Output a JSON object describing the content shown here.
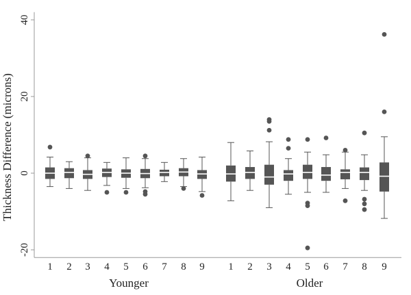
{
  "chart_data": {
    "type": "box",
    "ylabel": "Thickness Difference (microns)",
    "xlabel": "",
    "ylim": [
      -22,
      42
    ],
    "y_ticks": [
      -20,
      0,
      20,
      40
    ],
    "grid": false,
    "colors": {
      "box": "#555555",
      "median": "#ffffff",
      "axis": "#999999",
      "text": "#222222"
    },
    "groups": [
      {
        "name": "Younger",
        "boxes": [
          {
            "label": "1",
            "q1": -1.5,
            "median": 0.0,
            "q3": 1.5,
            "whisker_low": -3.5,
            "whisker_high": 4.2,
            "outliers": [
              6.8
            ]
          },
          {
            "label": "2",
            "q1": -1.3,
            "median": 0.2,
            "q3": 1.3,
            "whisker_low": -4.0,
            "whisker_high": 3.0,
            "outliers": []
          },
          {
            "label": "3",
            "q1": -1.5,
            "median": -0.3,
            "q3": 0.8,
            "whisker_low": -4.5,
            "whisker_high": 4.0,
            "outliers": [
              4.5
            ]
          },
          {
            "label": "4",
            "q1": -1.0,
            "median": 0.2,
            "q3": 1.2,
            "whisker_low": -3.2,
            "whisker_high": 2.8,
            "outliers": [
              -5.0
            ]
          },
          {
            "label": "5",
            "q1": -1.2,
            "median": 0.0,
            "q3": 1.0,
            "whisker_low": -4.0,
            "whisker_high": 4.0,
            "outliers": [
              -5.0
            ]
          },
          {
            "label": "6",
            "q1": -1.3,
            "median": -0.1,
            "q3": 1.1,
            "whisker_low": -3.8,
            "whisker_high": 3.8,
            "outliers": [
              4.5,
              -4.8,
              -5.5
            ]
          },
          {
            "label": "7",
            "q1": -0.8,
            "median": 0.2,
            "q3": 0.9,
            "whisker_low": -2.2,
            "whisker_high": 2.8,
            "outliers": []
          },
          {
            "label": "8",
            "q1": -0.8,
            "median": 0.3,
            "q3": 1.3,
            "whisker_low": -3.5,
            "whisker_high": 3.8,
            "outliers": [
              -4.0
            ]
          },
          {
            "label": "9",
            "q1": -1.5,
            "median": -0.2,
            "q3": 0.8,
            "whisker_low": -4.8,
            "whisker_high": 4.2,
            "outliers": [
              -5.8
            ]
          }
        ]
      },
      {
        "name": "Older",
        "boxes": [
          {
            "label": "1",
            "q1": -2.2,
            "median": -0.2,
            "q3": 2.0,
            "whisker_low": -7.2,
            "whisker_high": 8.0,
            "outliers": []
          },
          {
            "label": "2",
            "q1": -1.5,
            "median": 0.2,
            "q3": 1.6,
            "whisker_low": -4.5,
            "whisker_high": 5.8,
            "outliers": []
          },
          {
            "label": "3",
            "q1": -3.0,
            "median": -1.0,
            "q3": 2.2,
            "whisker_low": -9.0,
            "whisker_high": 8.2,
            "outliers": [
              14.0,
              13.5,
              11.2
            ]
          },
          {
            "label": "4",
            "q1": -2.0,
            "median": -0.2,
            "q3": 0.8,
            "whisker_low": -5.5,
            "whisker_high": 3.8,
            "outliers": [
              8.8,
              6.5
            ]
          },
          {
            "label": "5",
            "q1": -1.5,
            "median": 0.2,
            "q3": 2.2,
            "whisker_low": -5.0,
            "whisker_high": 5.5,
            "outliers": [
              8.8,
              -7.8,
              -8.5,
              -19.5
            ]
          },
          {
            "label": "6",
            "q1": -2.0,
            "median": -0.5,
            "q3": 1.6,
            "whisker_low": -5.0,
            "whisker_high": 4.8,
            "outliers": [
              9.2
            ]
          },
          {
            "label": "7",
            "q1": -1.6,
            "median": 0.2,
            "q3": 1.0,
            "whisker_low": -4.0,
            "whisker_high": 5.5,
            "outliers": [
              6.0,
              -7.2
            ]
          },
          {
            "label": "8",
            "q1": -1.8,
            "median": 0.2,
            "q3": 1.5,
            "whisker_low": -4.5,
            "whisker_high": 4.8,
            "outliers": [
              10.5,
              -6.8,
              -8.0,
              -9.5
            ]
          },
          {
            "label": "9",
            "q1": -4.8,
            "median": -0.8,
            "q3": 2.8,
            "whisker_low": -11.8,
            "whisker_high": 9.5,
            "outliers": [
              36.2,
              16.0
            ]
          }
        ]
      }
    ]
  }
}
